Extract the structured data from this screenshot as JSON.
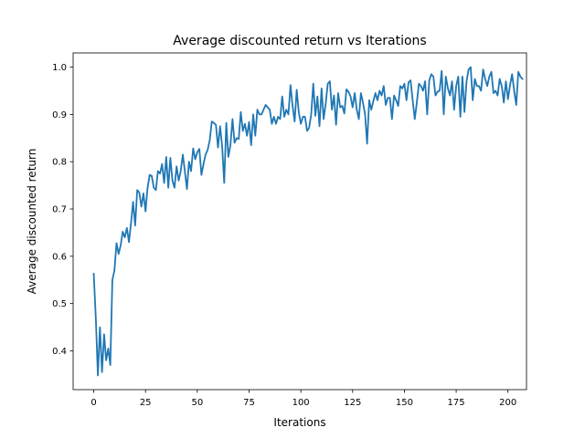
{
  "chart_data": {
    "type": "line",
    "title": "Average discounted return vs Iterations",
    "xlabel": "Iterations",
    "ylabel": "Average discounted return",
    "xlim": [
      -9.95,
      208.95
    ],
    "ylim": [
      0.318,
      1.03
    ],
    "x_ticks": [
      0,
      25,
      50,
      75,
      100,
      125,
      150,
      175,
      200
    ],
    "y_ticks": [
      0.4,
      0.5,
      0.6,
      0.7,
      0.8,
      0.9,
      1.0
    ],
    "x_tick_labels": [
      "0",
      "25",
      "50",
      "75",
      "100",
      "125",
      "150",
      "175",
      "200"
    ],
    "y_tick_labels": [
      "0.4",
      "0.5",
      "0.6",
      "0.7",
      "0.8",
      "0.9",
      "1.0"
    ],
    "grid": false,
    "series": [
      {
        "color": "#1f77b4",
        "x_start": 0,
        "x_step": 1,
        "values": [
          0.563,
          0.47,
          0.348,
          0.45,
          0.355,
          0.435,
          0.38,
          0.405,
          0.37,
          0.55,
          0.57,
          0.628,
          0.605,
          0.623,
          0.652,
          0.64,
          0.66,
          0.63,
          0.67,
          0.715,
          0.665,
          0.74,
          0.735,
          0.705,
          0.733,
          0.695,
          0.745,
          0.772,
          0.77,
          0.745,
          0.74,
          0.78,
          0.775,
          0.795,
          0.755,
          0.81,
          0.745,
          0.808,
          0.76,
          0.745,
          0.79,
          0.76,
          0.78,
          0.815,
          0.78,
          0.742,
          0.8,
          0.78,
          0.828,
          0.805,
          0.82,
          0.827,
          0.772,
          0.795,
          0.815,
          0.825,
          0.845,
          0.885,
          0.882,
          0.878,
          0.83,
          0.875,
          0.833,
          0.755,
          0.882,
          0.81,
          0.835,
          0.89,
          0.84,
          0.85,
          0.848,
          0.905,
          0.865,
          0.88,
          0.855,
          0.884,
          0.835,
          0.9,
          0.855,
          0.91,
          0.9,
          0.9,
          0.91,
          0.92,
          0.915,
          0.91,
          0.88,
          0.895,
          0.88,
          0.895,
          0.89,
          0.938,
          0.895,
          0.91,
          0.9,
          0.962,
          0.918,
          0.885,
          0.952,
          0.905,
          0.88,
          0.895,
          0.895,
          0.865,
          0.872,
          0.9,
          0.965,
          0.897,
          0.938,
          0.875,
          0.955,
          0.89,
          0.923,
          0.965,
          0.97,
          0.91,
          0.94,
          0.878,
          0.945,
          0.915,
          0.918,
          0.902,
          0.953,
          0.948,
          0.938,
          0.915,
          0.945,
          0.91,
          0.89,
          0.945,
          0.925,
          0.9,
          0.838,
          0.93,
          0.91,
          0.928,
          0.945,
          0.93,
          0.95,
          0.94,
          0.96,
          0.92,
          0.935,
          0.935,
          0.89,
          0.94,
          0.93,
          0.918,
          0.96,
          0.955,
          0.965,
          0.93,
          0.968,
          0.972,
          0.93,
          0.89,
          0.925,
          0.965,
          0.96,
          0.95,
          0.97,
          0.9,
          0.972,
          0.985,
          0.98,
          0.94,
          0.948,
          0.95,
          0.992,
          0.9,
          0.98,
          0.955,
          0.94,
          0.97,
          0.91,
          0.96,
          0.98,
          0.895,
          0.98,
          0.905,
          0.97,
          0.995,
          1.0,
          0.93,
          0.975,
          0.96,
          0.96,
          0.95,
          0.995,
          0.975,
          0.96,
          0.98,
          0.99,
          0.945,
          0.95,
          0.94,
          0.975,
          0.96,
          0.925,
          0.97,
          0.932,
          0.962,
          0.985,
          0.95,
          0.92,
          0.99,
          0.98,
          0.975
        ]
      }
    ]
  }
}
